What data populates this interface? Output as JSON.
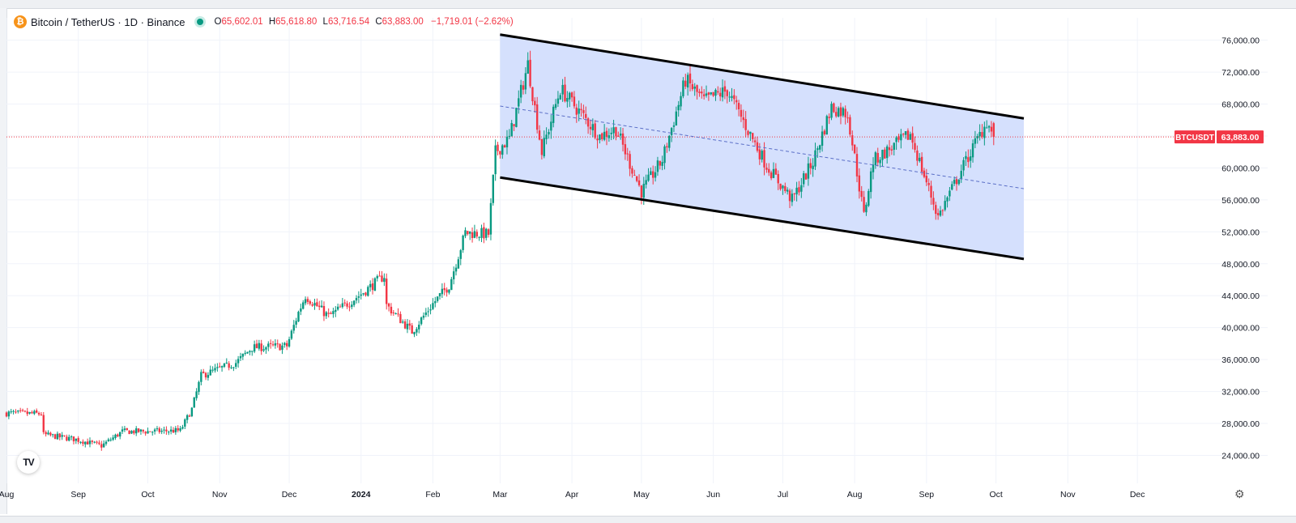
{
  "legend": {
    "symbol_title": "Bitcoin / TetherUS · 1D · Binance",
    "open": "65,602.01",
    "high": "65,618.80",
    "low": "63,716.54",
    "close": "63,883.00",
    "change": "−1,719.01 (−2.62%)"
  },
  "price_tag": {
    "symbol": "BTCUSDT",
    "price": "63,883.00"
  },
  "colors": {
    "up": "#089981",
    "down": "#f23645",
    "channel_fill": "#d3defd",
    "channel_line": "#000000",
    "midline": "#5b6fc7"
  },
  "icons": {
    "coin": "bitcoin-icon",
    "status": "market-open-dot-icon",
    "logo": "tradingview-logo-icon",
    "settings": "gear-icon"
  },
  "chart_data": {
    "type": "candlestick",
    "interval": "1D",
    "x_ticks": [
      "Aug",
      "Sep",
      "Oct",
      "Nov",
      "Dec",
      "2024",
      "Feb",
      "Mar",
      "Apr",
      "May",
      "Jun",
      "Jul",
      "Aug",
      "Sep",
      "Oct",
      "Nov",
      "Dec"
    ],
    "y_ticks": [
      "24,000.00",
      "28,000.00",
      "32,000.00",
      "36,000.00",
      "40,000.00",
      "44,000.00",
      "48,000.00",
      "52,000.00",
      "56,000.00",
      "60,000.00",
      "64,000.00",
      "68,000.00",
      "72,000.00",
      "76,000.00"
    ],
    "y_range": [
      20500,
      78800
    ],
    "x_range": [
      "2023-08-01",
      "2024-12-31"
    ],
    "last_price": 63883,
    "grid": true,
    "close_anchors": [
      [
        "2023-08-01",
        29300
      ],
      [
        "2023-08-16",
        29200
      ],
      [
        "2023-08-17",
        26600
      ],
      [
        "2023-08-31",
        26000
      ],
      [
        "2023-09-11",
        25200
      ],
      [
        "2023-09-20",
        27000
      ],
      [
        "2023-10-01",
        27000
      ],
      [
        "2023-10-15",
        27100
      ],
      [
        "2023-10-20",
        29800
      ],
      [
        "2023-10-24",
        34000
      ],
      [
        "2023-11-08",
        35600
      ],
      [
        "2023-11-15",
        37500
      ],
      [
        "2023-11-30",
        37700
      ],
      [
        "2023-12-05",
        41900
      ],
      [
        "2023-12-08",
        44000
      ],
      [
        "2023-12-18",
        41400
      ],
      [
        "2024-01-01",
        44200
      ],
      [
        "2024-01-11",
        46500
      ],
      [
        "2024-01-12",
        42800
      ],
      [
        "2024-01-23",
        39500
      ],
      [
        "2024-02-01",
        43000
      ],
      [
        "2024-02-08",
        45300
      ],
      [
        "2024-02-15",
        51900
      ],
      [
        "2024-02-25",
        51700
      ],
      [
        "2024-02-28",
        62000
      ],
      [
        "2024-03-05",
        63700
      ],
      [
        "2024-03-13",
        73000
      ],
      [
        "2024-03-19",
        62000
      ],
      [
        "2024-03-27",
        69900
      ],
      [
        "2024-04-13",
        64000
      ],
      [
        "2024-04-20",
        64900
      ],
      [
        "2024-05-01",
        57000
      ],
      [
        "2024-05-10",
        61000
      ],
      [
        "2024-05-20",
        71000
      ],
      [
        "2024-05-28",
        68400
      ],
      [
        "2024-06-07",
        69700
      ],
      [
        "2024-06-24",
        60300
      ],
      [
        "2024-07-05",
        56000
      ],
      [
        "2024-07-14",
        60800
      ],
      [
        "2024-07-22",
        67600
      ],
      [
        "2024-07-29",
        66800
      ],
      [
        "2024-08-05",
        54000
      ],
      [
        "2024-08-09",
        60900
      ],
      [
        "2024-08-25",
        64200
      ],
      [
        "2024-09-06",
        53900
      ],
      [
        "2024-09-17",
        60300
      ],
      [
        "2024-09-27",
        65800
      ],
      [
        "2024-09-30",
        63883
      ]
    ],
    "channel": {
      "upper": [
        [
          "2024-03-01",
          76700
        ],
        [
          "2024-10-13",
          66200
        ]
      ],
      "lower": [
        [
          "2024-03-01",
          58800
        ],
        [
          "2024-10-13",
          48600
        ]
      ],
      "median": [
        [
          "2024-03-01",
          67750
        ],
        [
          "2024-10-13",
          57400
        ]
      ]
    }
  }
}
